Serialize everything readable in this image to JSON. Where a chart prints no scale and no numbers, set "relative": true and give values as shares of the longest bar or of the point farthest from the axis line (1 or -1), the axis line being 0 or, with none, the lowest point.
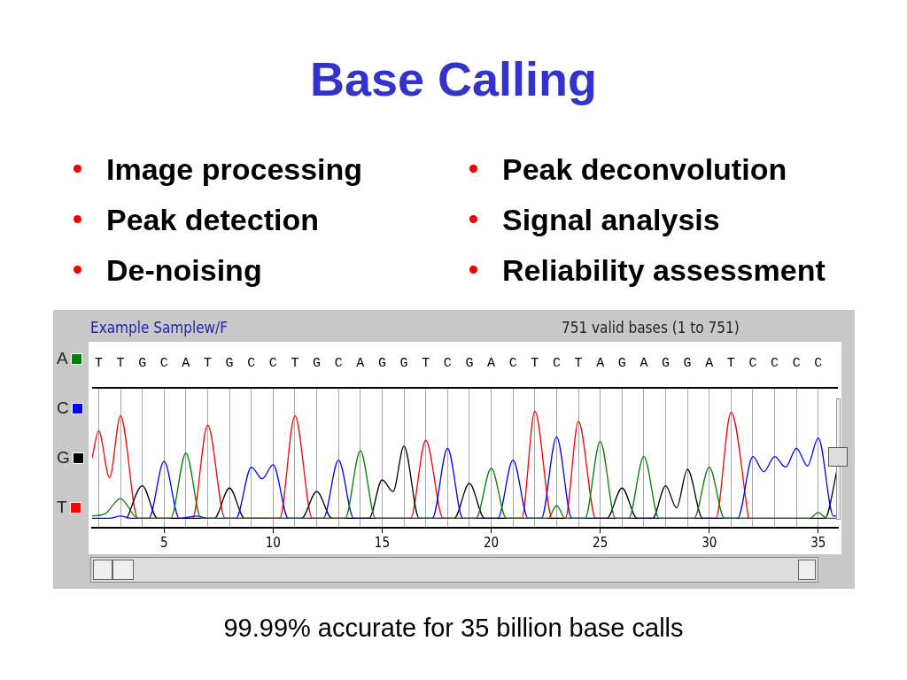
{
  "chart_data": {
    "type": "line",
    "title": "Base Calling",
    "relative": true,
    "annotations": [
      "Image processing",
      "Peak detection",
      "De-noising",
      "Peak deconvolution",
      "Signal analysis",
      "Reliability assessment",
      "Example Samplew/F",
      "751 valid bases (1 to 751)",
      "99.99% accurate for 35 billion base calls",
      "T T G C A T G C C T G C A G G T C G A C T C T A G A G G A T C C C C"
    ],
    "xlim": [
      1.7,
      35.9
    ],
    "xticks": [
      {
        "value": 2,
        "label": null
      },
      {
        "value": 3,
        "label": null
      },
      {
        "value": 4,
        "label": null
      },
      5,
      {
        "value": 6,
        "label": null
      },
      {
        "value": 7,
        "label": null
      },
      {
        "value": 8,
        "label": null
      },
      {
        "value": 9,
        "label": null
      },
      10,
      {
        "value": 11,
        "label": null
      },
      {
        "value": 12,
        "label": null
      },
      {
        "value": 13,
        "label": null
      },
      {
        "value": 14,
        "label": null
      },
      15,
      {
        "value": 16,
        "label": null
      },
      {
        "value": 17,
        "label": null
      },
      {
        "value": 18,
        "label": null
      },
      {
        "value": 19,
        "label": null
      },
      20,
      {
        "value": 21,
        "label": null
      },
      {
        "value": 22,
        "label": null
      },
      {
        "value": 23,
        "label": null
      },
      {
        "value": 24,
        "label": null
      },
      25,
      {
        "value": 26,
        "label": null
      },
      {
        "value": 27,
        "label": null
      },
      {
        "value": 28,
        "label": null
      },
      {
        "value": 29,
        "label": null
      },
      30,
      {
        "value": 31,
        "label": null
      },
      {
        "value": 32,
        "label": null
      },
      {
        "value": 33,
        "label": null
      },
      {
        "value": 34,
        "label": null
      },
      35
    ],
    "grid": "x",
    "legend": "left",
    "marker": "none",
    "line_style": "solid",
    "series": [
      {
        "name": "A",
        "color": "#008000",
        "x": [
          1.7,
          2.3,
          3,
          3.8,
          5.3,
          6,
          6.7,
          13.3,
          14,
          14.7,
          19.3,
          20,
          20.7,
          22.6,
          23,
          23.4,
          24.3,
          25,
          25.7,
          26.3,
          27,
          27.7,
          29.3,
          30,
          30.7,
          34.6,
          35,
          35.4,
          35.9
        ],
        "values": [
          0.1,
          0.12,
          0.25,
          0.08,
          0.08,
          0.64,
          0.08,
          0.08,
          0.66,
          0.08,
          0.08,
          0.51,
          0.08,
          0.08,
          0.19,
          0.08,
          0.08,
          0.74,
          0.08,
          0.08,
          0.61,
          0.08,
          0.08,
          0.52,
          0.08,
          0.08,
          0.13,
          0.08,
          0.08
        ]
      },
      {
        "name": "C",
        "color": "#0000ff",
        "x": [
          1.7,
          2.5,
          3,
          3.5,
          4.3,
          5,
          5.7,
          6.5,
          7,
          8.3,
          9,
          9.5,
          10,
          10.7,
          12.3,
          13,
          13.7,
          17.3,
          18,
          18.7,
          20.3,
          21,
          21.7,
          22.3,
          23,
          23.7,
          31.3,
          32,
          32.5,
          33,
          33.5,
          34,
          34.5,
          35,
          35.7,
          35.9
        ],
        "values": [
          0.08,
          0.08,
          0.1,
          0.08,
          0.08,
          0.57,
          0.08,
          0.1,
          0.08,
          0.08,
          0.52,
          0.42,
          0.54,
          0.08,
          0.08,
          0.58,
          0.08,
          0.08,
          0.68,
          0.08,
          0.08,
          0.58,
          0.08,
          0.08,
          0.78,
          0.08,
          0.08,
          0.61,
          0.48,
          0.61,
          0.52,
          0.68,
          0.53,
          0.77,
          0.1,
          0.1
        ]
      },
      {
        "name": "G",
        "color": "#000000",
        "x": [
          3.3,
          4,
          4.7,
          7.3,
          8,
          8.7,
          11.3,
          12,
          12.7,
          14.4,
          15,
          15.5,
          16,
          16.7,
          18.3,
          19,
          19.7,
          25.3,
          26,
          26.7,
          27.4,
          28,
          28.5,
          29,
          29.7,
          35.3,
          35.9
        ],
        "values": [
          0.08,
          0.36,
          0.08,
          0.08,
          0.34,
          0.08,
          0.08,
          0.31,
          0.08,
          0.08,
          0.41,
          0.31,
          0.7,
          0.08,
          0.08,
          0.38,
          0.08,
          0.08,
          0.34,
          0.08,
          0.08,
          0.36,
          0.17,
          0.5,
          0.08,
          0.08,
          0.53
        ]
      },
      {
        "name": "T",
        "color": "#ff0000",
        "x": [
          1.7,
          2,
          2.5,
          3,
          3.8,
          6.3,
          7,
          7.8,
          10.3,
          11,
          11.8,
          16.3,
          17,
          17.8,
          21.4,
          22,
          22.8,
          23.4,
          24,
          24.8,
          30.3,
          31,
          31.8
        ],
        "values": [
          0.6,
          0.83,
          0.43,
          0.96,
          0.08,
          0.08,
          0.88,
          0.08,
          0.08,
          0.96,
          0.08,
          0.08,
          0.75,
          0.08,
          0.08,
          1,
          0.08,
          0.08,
          0.91,
          0.08,
          0.08,
          0.99,
          0.08
        ]
      }
    ]
  }
}
